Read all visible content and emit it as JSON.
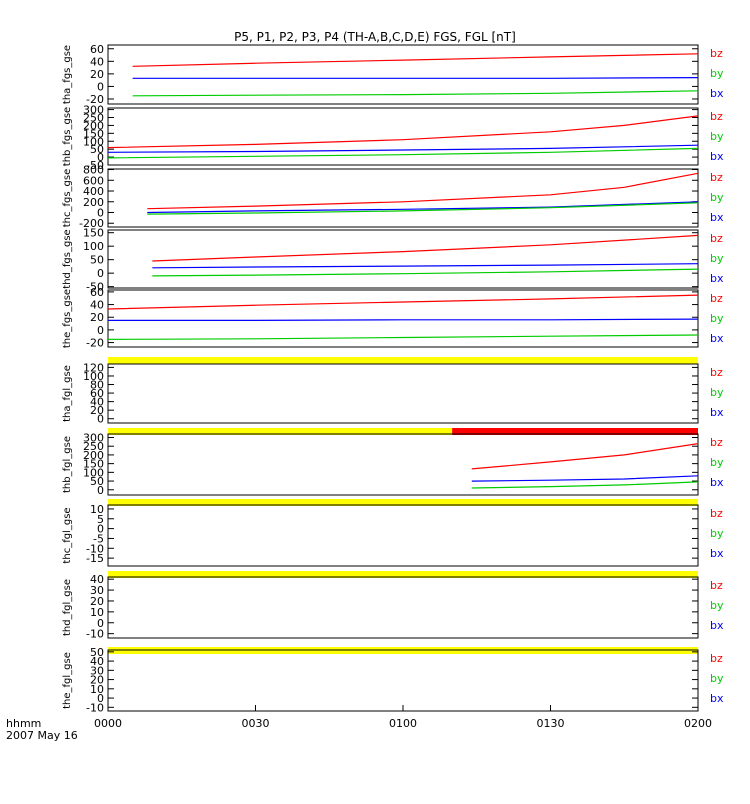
{
  "chart_data": {
    "type": "line",
    "title": "P5, P1, P2, P3, P4 (TH-A,B,C,D,E) FGS, FGL [nT]",
    "x_ticks": [
      "0000",
      "0030",
      "0100",
      "0130",
      "0200"
    ],
    "x_range": [
      "00:00",
      "02:00"
    ],
    "x_label_top": "hhmm",
    "x_label_bottom": "2007 May 16",
    "series_colors": {
      "bz": "#ff0000",
      "by": "#00cc00",
      "bx": "#0000ff"
    },
    "bar_colors": {
      "yellow": "#ffff00",
      "red": "#ff0000"
    },
    "panels": [
      {
        "ylabel": "tha_fgs_gse",
        "yticks": [
          60,
          40,
          20,
          0,
          -20
        ],
        "ylim": [
          -28,
          66
        ],
        "legend": [
          "bz",
          "by",
          "bx"
        ],
        "series": [
          {
            "name": "bz",
            "x": [
              5,
              30,
              60,
              90,
              120
            ],
            "y": [
              32,
              37,
              42,
              47,
              52
            ]
          },
          {
            "name": "bx",
            "x": [
              5,
              30,
              60,
              90,
              120
            ],
            "y": [
              13,
              13,
              13,
              13,
              14
            ]
          },
          {
            "name": "by",
            "x": [
              5,
              30,
              60,
              90,
              120
            ],
            "y": [
              -15,
              -14,
              -13,
              -11,
              -7
            ]
          }
        ]
      },
      {
        "ylabel": "thb_fgs_gse",
        "yticks": [
          300,
          250,
          200,
          150,
          100,
          50,
          0,
          -50
        ],
        "ylim": [
          -50,
          310
        ],
        "legend": [
          "bz",
          "by",
          "bx"
        ],
        "series": [
          {
            "name": "bz",
            "x": [
              0,
              30,
              60,
              90,
              105,
              120
            ],
            "y": [
              60,
              80,
              110,
              160,
              200,
              260
            ]
          },
          {
            "name": "bx",
            "x": [
              0,
              30,
              60,
              90,
              120
            ],
            "y": [
              30,
              35,
              45,
              55,
              75
            ]
          },
          {
            "name": "by",
            "x": [
              0,
              30,
              60,
              90,
              120
            ],
            "y": [
              -5,
              5,
              15,
              30,
              55
            ]
          }
        ]
      },
      {
        "ylabel": "thc_fgs_gse",
        "yticks": [
          800,
          600,
          400,
          200,
          0,
          -200
        ],
        "ylim": [
          -270,
          810
        ],
        "legend": [
          "bz",
          "by",
          "bx"
        ],
        "series": [
          {
            "name": "bz",
            "x": [
              8,
              30,
              60,
              90,
              105,
              120
            ],
            "y": [
              70,
              120,
              200,
              330,
              470,
              730
            ]
          },
          {
            "name": "bx",
            "x": [
              8,
              30,
              60,
              90,
              120
            ],
            "y": [
              0,
              30,
              60,
              100,
              200
            ]
          },
          {
            "name": "by",
            "x": [
              8,
              30,
              60,
              90,
              120
            ],
            "y": [
              -30,
              -10,
              30,
              90,
              180
            ]
          }
        ]
      },
      {
        "ylabel": "thd_fgs_gse",
        "yticks": [
          150,
          100,
          50,
          0,
          -50
        ],
        "ylim": [
          -55,
          160
        ],
        "legend": [
          "bz",
          "by",
          "bx"
        ],
        "series": [
          {
            "name": "bz",
            "x": [
              9,
              30,
              60,
              90,
              120
            ],
            "y": [
              45,
              60,
              80,
              105,
              140
            ]
          },
          {
            "name": "bx",
            "x": [
              9,
              30,
              60,
              90,
              120
            ],
            "y": [
              20,
              23,
              26,
              30,
              35
            ]
          },
          {
            "name": "by",
            "x": [
              9,
              30,
              60,
              90,
              120
            ],
            "y": [
              -10,
              -7,
              -2,
              5,
              15
            ]
          }
        ]
      },
      {
        "ylabel": "the_fgs_gse",
        "yticks": [
          60,
          40,
          20,
          0,
          -20
        ],
        "ylim": [
          -27,
          63
        ],
        "legend": [
          "bz",
          "by",
          "bx"
        ],
        "series": [
          {
            "name": "bz",
            "x": [
              0,
              30,
              60,
              90,
              120
            ],
            "y": [
              33,
              39,
              44,
              49,
              55
            ]
          },
          {
            "name": "bx",
            "x": [
              0,
              30,
              60,
              90,
              120
            ],
            "y": [
              15,
              15,
              16,
              16,
              17
            ]
          },
          {
            "name": "by",
            "x": [
              0,
              30,
              60,
              90,
              120
            ],
            "y": [
              -15,
              -14,
              -12,
              -10,
              -8
            ]
          }
        ]
      },
      {
        "ylabel": "tha_fgl_gse",
        "yticks": [
          120,
          100,
          80,
          60,
          40,
          20,
          0
        ],
        "ylim": [
          -10,
          128
        ],
        "legend": [
          "bz",
          "by",
          "bx"
        ],
        "bars": [
          {
            "color": "yellow",
            "from": 0,
            "to": 120
          }
        ],
        "series": []
      },
      {
        "ylabel": "thb_fgl_gse",
        "yticks": [
          300,
          250,
          200,
          150,
          100,
          50,
          0
        ],
        "ylim": [
          -30,
          320
        ],
        "legend": [
          "bz",
          "by",
          "bx"
        ],
        "bars": [
          {
            "color": "yellow",
            "from": 0,
            "to": 70
          },
          {
            "color": "red",
            "from": 70,
            "to": 120
          }
        ],
        "series": [
          {
            "name": "bz",
            "x": [
              74,
              90,
              105,
              120
            ],
            "y": [
              120,
              160,
              200,
              265
            ]
          },
          {
            "name": "bx",
            "x": [
              74,
              90,
              105,
              120
            ],
            "y": [
              50,
              55,
              62,
              80
            ]
          },
          {
            "name": "by",
            "x": [
              74,
              90,
              105,
              120
            ],
            "y": [
              10,
              18,
              28,
              45
            ]
          }
        ]
      },
      {
        "ylabel": "thc_fgl_gse",
        "yticks": [
          10,
          5,
          0,
          -5,
          -10,
          -15
        ],
        "ylim": [
          -19,
          12
        ],
        "legend": [
          "bz",
          "by",
          "bx"
        ],
        "bars": [
          {
            "color": "yellow",
            "from": 0,
            "to": 120
          }
        ],
        "series": []
      },
      {
        "ylabel": "thd_fgl_gse",
        "yticks": [
          40,
          30,
          20,
          10,
          0,
          -10
        ],
        "ylim": [
          -14,
          42
        ],
        "legend": [
          "bz",
          "by",
          "bx"
        ],
        "bars": [
          {
            "color": "yellow",
            "from": 0,
            "to": 120
          }
        ],
        "series": []
      },
      {
        "ylabel": "the_fgl_gse",
        "yticks": [
          50,
          40,
          30,
          20,
          10,
          0,
          -10
        ],
        "ylim": [
          -14,
          52
        ],
        "legend": [
          "bz",
          "by",
          "bx"
        ],
        "bars": [
          {
            "color": "yellow",
            "from": 0,
            "to": 120
          }
        ],
        "series": []
      }
    ]
  }
}
